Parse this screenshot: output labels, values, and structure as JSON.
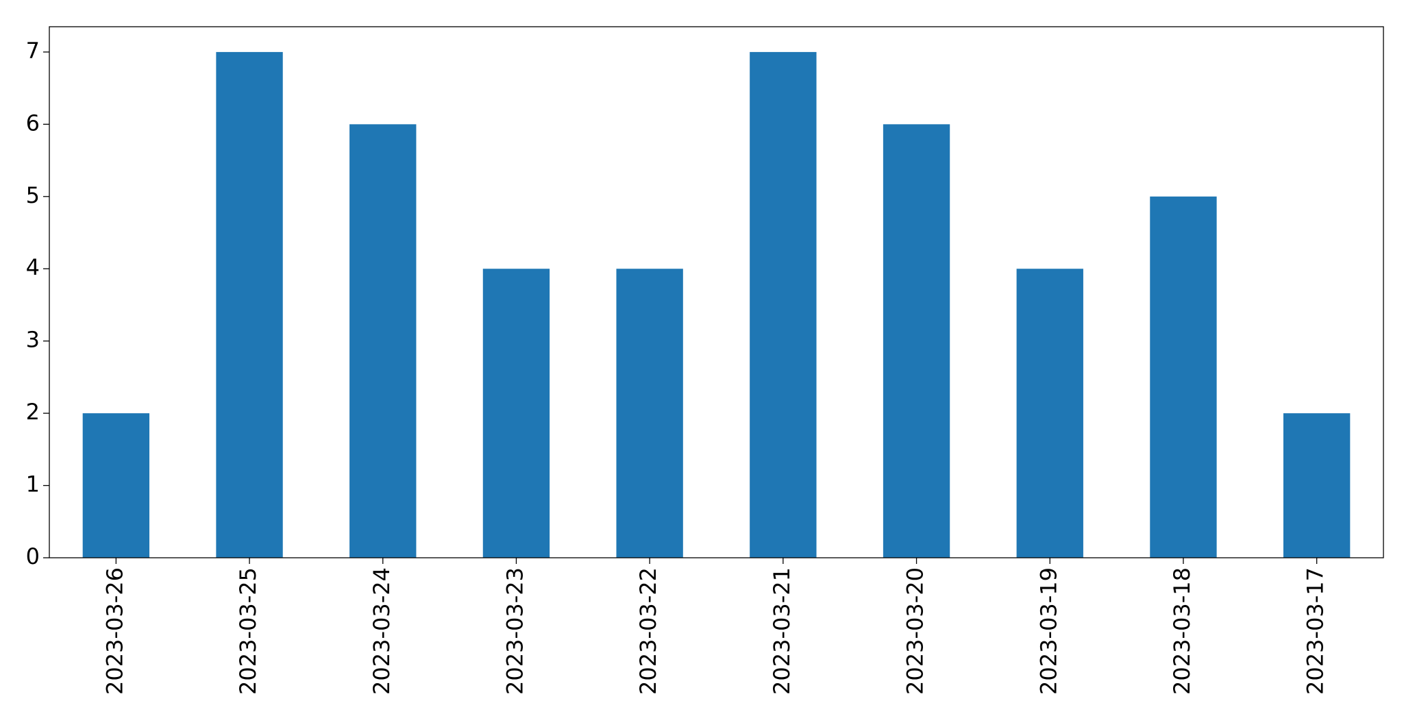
{
  "chart_data": {
    "type": "bar",
    "categories": [
      "2023-03-26",
      "2023-03-25",
      "2023-03-24",
      "2023-03-23",
      "2023-03-22",
      "2023-03-21",
      "2023-03-20",
      "2023-03-19",
      "2023-03-18",
      "2023-03-17"
    ],
    "values": [
      2,
      7,
      6,
      4,
      4,
      7,
      6,
      4,
      5,
      2
    ],
    "color": "#1f77b4",
    "ylim": [
      0,
      7.35
    ],
    "yticks": [
      0,
      1,
      2,
      3,
      4,
      5,
      6,
      7
    ],
    "grid": false
  }
}
